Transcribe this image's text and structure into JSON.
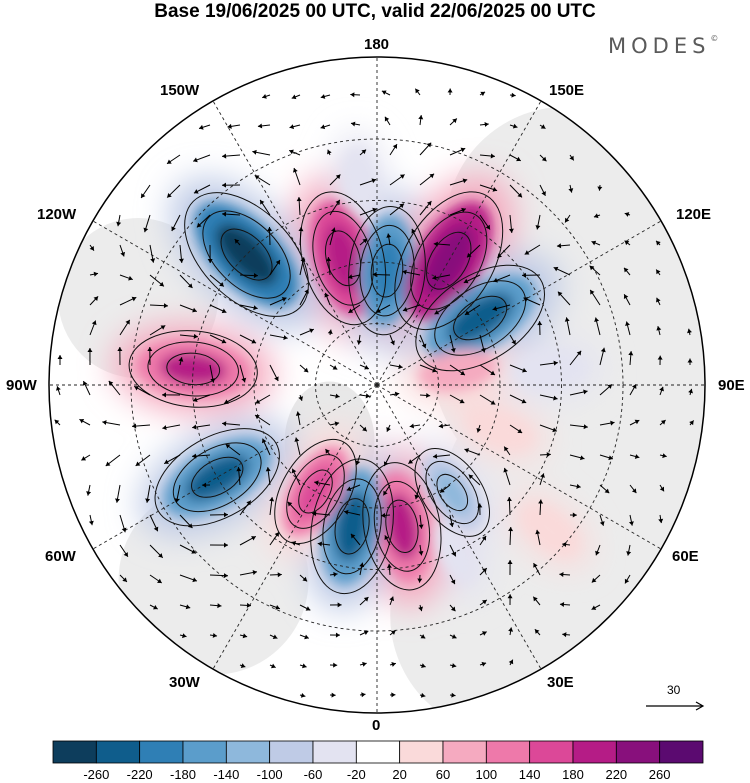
{
  "header": {
    "title": "Base 19/06/2025 00 UTC, valid 22/06/2025 00 UTC",
    "brand": "MODES",
    "brand_mark": "©"
  },
  "map": {
    "projection": "north-polar-stereographic",
    "longitude_labels": {
      "top": "180",
      "top_right": "150E",
      "upper_right": "120E",
      "right": "90E",
      "lower_right": "60E",
      "bottom_right": "30E",
      "bottom": "0",
      "bottom_left": "30W",
      "lower_left": "60W",
      "left": "90W",
      "upper_left": "120W",
      "top_left": "150W"
    },
    "anomaly_centers": [
      {
        "lon": -165,
        "lat": 58,
        "sign": "positive",
        "strength": 220
      },
      {
        "lon": 175,
        "lat": 62,
        "sign": "negative",
        "strength": 200
      },
      {
        "lon": 150,
        "lat": 55,
        "sign": "positive",
        "strength": 260
      },
      {
        "lon": 123,
        "lat": 60,
        "sign": "negative",
        "strength": 240
      },
      {
        "lon": 95,
        "lat": 48,
        "sign": "negative",
        "strength": 80
      },
      {
        "lon": 100,
        "lat": 70,
        "sign": "positive",
        "strength": 100
      },
      {
        "lon": 70,
        "lat": 58,
        "sign": "positive",
        "strength": 60
      },
      {
        "lon": 50,
        "lat": 35,
        "sign": "positive",
        "strength": 60
      },
      {
        "lon": 35,
        "lat": 58,
        "sign": "negative",
        "strength": 120
      },
      {
        "lon": 25,
        "lat": 45,
        "sign": "negative",
        "strength": 60
      },
      {
        "lon": 10,
        "lat": 55,
        "sign": "positive",
        "strength": 200
      },
      {
        "lon": -10,
        "lat": 55,
        "sign": "negative",
        "strength": 220
      },
      {
        "lon": -30,
        "lat": 60,
        "sign": "positive",
        "strength": 160
      },
      {
        "lon": -60,
        "lat": 45,
        "sign": "negative",
        "strength": 220
      },
      {
        "lon": -95,
        "lat": 45,
        "sign": "positive",
        "strength": 200
      },
      {
        "lon": -135,
        "lat": 45,
        "sign": "negative",
        "strength": 260
      },
      {
        "lon": -175,
        "lat": 40,
        "sign": "negative",
        "strength": 60
      }
    ]
  },
  "colorbar": {
    "ticks": [
      "-260",
      "-220",
      "-180",
      "-140",
      "-100",
      "-60",
      "-20",
      "20",
      "60",
      "100",
      "140",
      "180",
      "220",
      "260"
    ],
    "colors": [
      "#0d3d5c",
      "#0f5d8c",
      "#2f7fb5",
      "#5b9dcb",
      "#8eb8dc",
      "#bfcbe6",
      "#e3e3f1",
      "#ffffff",
      "#fadada",
      "#f5aac0",
      "#ee79aa",
      "#dc4898",
      "#b51c86",
      "#88107c",
      "#5b0a70"
    ]
  },
  "vector_reference": {
    "label": "30"
  }
}
